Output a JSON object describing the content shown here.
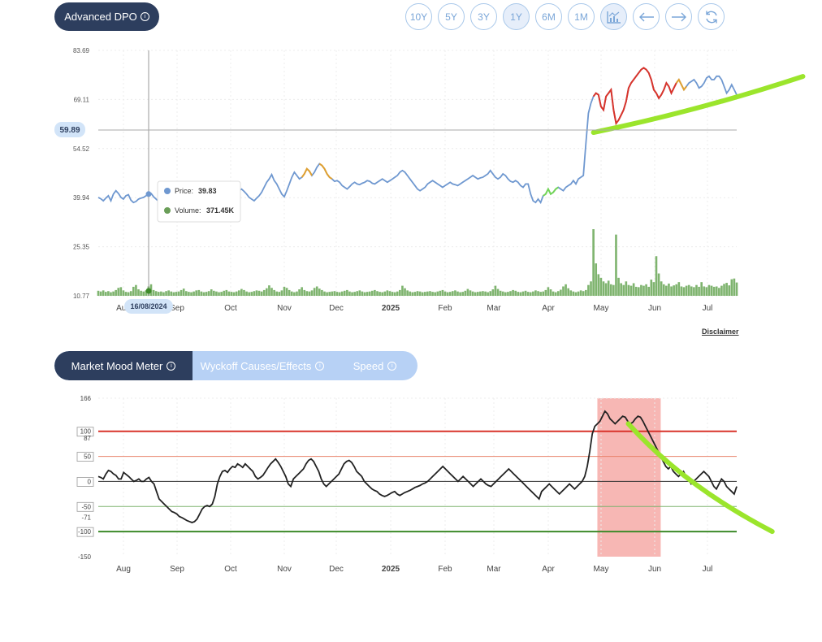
{
  "header": {
    "title": "Advanced DPO"
  },
  "toolbar": {
    "buttons": [
      "10Y",
      "5Y",
      "3Y",
      "1Y",
      "6M",
      "1M"
    ],
    "active": "1Y",
    "icons": [
      "chart-type-icon",
      "arrow-left-icon",
      "arrow-right-icon",
      "refresh-icon"
    ]
  },
  "disclaimer": "Disclaimer",
  "tabs": [
    "Market Mood Meter",
    "Wyckoff Causes/Effects",
    "Speed"
  ],
  "colors": {
    "price_line": "#6f98d0",
    "volume": "#7fb46f",
    "bull": "#d9342b",
    "mild": "#e0a030",
    "bear": "#74d657",
    "annotation": "#9be52c",
    "mood_line": "#222222",
    "highlight": "#f7b7b4",
    "title_bg": "#2d3e5e"
  },
  "chart_data": [
    {
      "type": "line",
      "name": "price-chart",
      "y_ticks": [
        "83.69",
        "69.11",
        "54.52",
        "39.94",
        "25.35",
        "10.77"
      ],
      "ylim": [
        10.77,
        83.69
      ],
      "x_ticks": [
        "Aug",
        "Sep",
        "Oct",
        "Nov",
        "Dec",
        "2025",
        "Feb",
        "Mar",
        "Apr",
        "May",
        "Jun",
        "Jul"
      ],
      "crosshair": {
        "y_label": "59.89",
        "x_label": "16/08/2024"
      },
      "tooltip": {
        "price_label": "Price:",
        "price": "39.83",
        "volume_label": "Volume:",
        "volume": "371.45K"
      },
      "price": [
        40,
        39.6,
        39,
        39.8,
        40.5,
        39,
        41,
        42,
        41.2,
        40,
        39.5,
        40.5,
        40.8,
        39.2,
        38.5,
        38.8,
        39.5,
        39.8,
        40,
        40.5,
        41,
        41.2,
        40.2,
        39.5,
        38.8,
        39,
        39.5,
        40,
        39.2,
        38.8,
        38,
        38.5,
        39,
        39.5,
        39.8,
        40.5,
        41,
        41.5,
        41,
        40,
        39.8,
        39.5,
        40.5,
        41,
        41.8,
        41.5,
        41,
        40.5,
        39.5,
        39.2,
        40,
        40.5,
        41.2,
        40.5,
        40,
        40.5,
        42,
        42.5,
        41.8,
        41,
        40,
        39.5,
        39,
        39.8,
        40.5,
        41.5,
        43,
        44.5,
        45.5,
        46.8,
        45,
        44,
        42.5,
        41,
        40.2,
        42,
        44,
        46,
        47.5,
        46.5,
        45.5,
        46,
        47,
        48.5,
        47.8,
        46.5,
        47.5,
        49,
        50,
        49.5,
        48.5,
        47,
        46,
        45.5,
        44.8,
        45,
        44.5,
        43.5,
        43,
        42.5,
        43.2,
        44,
        44.5,
        44,
        43.8,
        44.2,
        44.5,
        45,
        44.8,
        44.2,
        44,
        44.5,
        45,
        45.5,
        45,
        44.5,
        45,
        45.5,
        46,
        46.5,
        47.5,
        48,
        47.5,
        46.5,
        45.5,
        44.5,
        43.5,
        42.5,
        42,
        42.5,
        43,
        44,
        44.5,
        45,
        44.5,
        44,
        43.5,
        43,
        43.5,
        44,
        44.5,
        44,
        43.8,
        43.5,
        44,
        44.5,
        45,
        45.5,
        46,
        46.5,
        46,
        45.5,
        45.8,
        46,
        46.5,
        47,
        48,
        47,
        46,
        45.5,
        46,
        47,
        46.5,
        45.5,
        44.8,
        44.5,
        45,
        44.5,
        43.5,
        43,
        44,
        44,
        41,
        39,
        38.5,
        39.5,
        38.5,
        40.5,
        41,
        42.5,
        41,
        41.5,
        42.5,
        43,
        42.5,
        42,
        43,
        43.5,
        44,
        45,
        44,
        45.5,
        46,
        46.5,
        56,
        65,
        68,
        70,
        71,
        70.5,
        67,
        66,
        70,
        71,
        72,
        66,
        62,
        63,
        64.5,
        66,
        68.5,
        72.5,
        74,
        75,
        76,
        77,
        78,
        78.5,
        78,
        77,
        75,
        72,
        71,
        69.5,
        70.5,
        72,
        74,
        73,
        71,
        72.5,
        74,
        75,
        73.5,
        72,
        73,
        74,
        74.5,
        75,
        74,
        72.5,
        73,
        74,
        75.5,
        76,
        75,
        75,
        76,
        76,
        75,
        73,
        71,
        72,
        73.5,
        72,
        70.5
      ],
      "volume": [
        1.4,
        1.2,
        1.5,
        1.1,
        1.3,
        1,
        1.2,
        1.6,
        2.2,
        2.4,
        1.5,
        1.1,
        1,
        1.3,
        2.5,
        3,
        1.8,
        1.4,
        1.2,
        1.5,
        2.6,
        3.2,
        1.6,
        1.3,
        1.1,
        1.2,
        1,
        1.3,
        1.5,
        1.2,
        1,
        1.1,
        1.2,
        1.6,
        2,
        1.3,
        1.1,
        1,
        1.2,
        1.5,
        1.6,
        1.2,
        1,
        1.1,
        1.3,
        1.8,
        1.4,
        1.2,
        1,
        1.1,
        1.4,
        1.6,
        1.2,
        1.1,
        1,
        1.2,
        1.5,
        1.9,
        1.6,
        1.2,
        1,
        1.1,
        1.3,
        1.5,
        1.4,
        1.2,
        1.6,
        2.1,
        2.9,
        2.2,
        1.6,
        1.2,
        1.1,
        1.5,
        2.5,
        2.2,
        1.6,
        1.2,
        1,
        1.2,
        1.8,
        2.4,
        1.6,
        1.3,
        1.2,
        1.5,
        2.2,
        2.6,
        2,
        1.6,
        1.2,
        1,
        1.1,
        1.2,
        1.3,
        1.1,
        1,
        1.2,
        1.4,
        1.6,
        1.2,
        1,
        1.1,
        1.3,
        1.5,
        1.2,
        1,
        1.1,
        1.2,
        1.4,
        1.6,
        1.3,
        1.1,
        1,
        1.2,
        1.5,
        1.3,
        1.1,
        1,
        1.2,
        1.6,
        2.8,
        2.1,
        1.5,
        1.2,
        1,
        1.1,
        1.3,
        1.2,
        1,
        1.1,
        1.2,
        1.3,
        1.1,
        1,
        1.2,
        1.4,
        1.6,
        1.2,
        1,
        1.1,
        1.3,
        1.5,
        1.2,
        1,
        1.1,
        1.4,
        1.9,
        1.5,
        1.2,
        1,
        1.1,
        1.2,
        1.3,
        1.2,
        1,
        1.3,
        1.8,
        2.8,
        1.9,
        1.4,
        1.2,
        1,
        1.1,
        1.3,
        1.6,
        1.4,
        1.1,
        1,
        1.2,
        1.4,
        1.1,
        1,
        1.2,
        1.5,
        1.3,
        1.1,
        1.2,
        1.6,
        2.4,
        1.8,
        1.2,
        1,
        1.3,
        1.7,
        2.6,
        3.2,
        2.1,
        1.5,
        1.2,
        1,
        1.2,
        1.5,
        1.3,
        1.6,
        3,
        4,
        18.5,
        9,
        6,
        5,
        4,
        3.5,
        4.2,
        3.2,
        3,
        17,
        5,
        3.5,
        3,
        4,
        3,
        2.8,
        3.5,
        2.5,
        2.4,
        3,
        2.8,
        3.2,
        2.5,
        4.5,
        3.8,
        11,
        6.2,
        4,
        3.2,
        2.8,
        3.4,
        2.6,
        2.9,
        3.2,
        3.8,
        2.6,
        2.4,
        2.8,
        3,
        2.6,
        2.4,
        3,
        2.5,
        3.8,
        2.6,
        2.4,
        3,
        2.8,
        2.5,
        2.6,
        2.2,
        2.8,
        3.3,
        3.6,
        2.9,
        4.6,
        4.8,
        3.7
      ],
      "volume_max": 18.5,
      "color_segments": [
        {
          "from": 81,
          "to": 85,
          "color": "mild"
        },
        {
          "from": 88,
          "to": 93,
          "color": "mild"
        },
        {
          "from": 177,
          "to": 183,
          "color": "bear"
        },
        {
          "from": 197,
          "to": 230,
          "color": "bull"
        },
        {
          "from": 230,
          "to": 234,
          "color": "mild"
        }
      ],
      "annotation_line": [
        [
          197,
          59.3
        ],
        [
          259,
          74.5
        ]
      ]
    },
    {
      "type": "line",
      "name": "mood-meter",
      "ylim": [
        -150,
        166
      ],
      "y_ticks": [
        "166",
        "100",
        "87",
        "50",
        "0",
        "-50",
        "-71",
        "-100",
        "-150"
      ],
      "y_tick_values": [
        166,
        100,
        87,
        50,
        0,
        -50,
        -71,
        -100,
        -150
      ],
      "boxed_ticks": [
        "100",
        "50",
        "0",
        "-50",
        "-100"
      ],
      "x_ticks": [
        "Aug",
        "Sep",
        "Oct",
        "Nov",
        "Dec",
        "2025",
        "Feb",
        "Mar",
        "Apr",
        "May",
        "Jun",
        "Jul"
      ],
      "levels": [
        {
          "value": 100,
          "color": "#d9342b",
          "width": 2
        },
        {
          "value": 50,
          "color": "#e8826a",
          "width": 1
        },
        {
          "value": 0,
          "color": "#333333",
          "width": 1
        },
        {
          "value": -50,
          "color": "#7fb46f",
          "width": 1
        },
        {
          "value": -100,
          "color": "#3d8a2a",
          "width": 2
        }
      ],
      "highlight": {
        "from": 197,
        "to": 222
      },
      "mood": [
        10,
        8,
        5,
        15,
        22,
        20,
        15,
        12,
        5,
        5,
        18,
        14,
        10,
        5,
        0,
        2,
        5,
        0,
        0,
        5,
        8,
        0,
        -5,
        -20,
        -35,
        -40,
        -45,
        -50,
        -55,
        -60,
        -62,
        -65,
        -70,
        -72,
        -75,
        -78,
        -80,
        -82,
        -80,
        -75,
        -65,
        -55,
        -50,
        -48,
        -50,
        -45,
        -30,
        -5,
        10,
        20,
        22,
        18,
        25,
        30,
        28,
        35,
        32,
        28,
        35,
        30,
        25,
        20,
        10,
        5,
        8,
        12,
        20,
        28,
        35,
        40,
        45,
        38,
        30,
        20,
        10,
        -5,
        -10,
        5,
        10,
        15,
        20,
        25,
        35,
        42,
        45,
        40,
        30,
        20,
        5,
        -5,
        -10,
        -5,
        0,
        5,
        10,
        15,
        25,
        35,
        40,
        42,
        38,
        30,
        20,
        15,
        10,
        0,
        -5,
        -10,
        -15,
        -18,
        -20,
        -25,
        -28,
        -30,
        -28,
        -25,
        -22,
        -20,
        -25,
        -28,
        -25,
        -22,
        -20,
        -18,
        -15,
        -12,
        -10,
        -8,
        -5,
        -3,
        0,
        5,
        10,
        15,
        20,
        25,
        30,
        25,
        20,
        15,
        10,
        5,
        0,
        5,
        10,
        5,
        0,
        -5,
        -10,
        -5,
        0,
        5,
        0,
        -5,
        -8,
        -10,
        -5,
        0,
        5,
        10,
        15,
        20,
        25,
        20,
        15,
        10,
        5,
        0,
        -5,
        -10,
        -15,
        -20,
        -25,
        -30,
        -35,
        -20,
        -15,
        -10,
        -5,
        -10,
        -15,
        -20,
        -25,
        -20,
        -15,
        -10,
        -5,
        -10,
        -15,
        -10,
        -5,
        0,
        10,
        30,
        60,
        95,
        110,
        115,
        120,
        130,
        140,
        135,
        125,
        120,
        115,
        120,
        125,
        130,
        128,
        120,
        115,
        118,
        125,
        130,
        128,
        120,
        110,
        100,
        90,
        80,
        70,
        60,
        50,
        40,
        30,
        25,
        30,
        20,
        15,
        10,
        15,
        20,
        10,
        5,
        -5,
        0,
        5,
        10,
        15,
        20,
        15,
        10,
        0,
        -10,
        -15,
        -5,
        5,
        0,
        -10,
        -15,
        -20,
        -25,
        -10
      ],
      "annotation_line": [
        [
          206,
          112
        ],
        [
          258,
          -95
        ]
      ]
    }
  ]
}
